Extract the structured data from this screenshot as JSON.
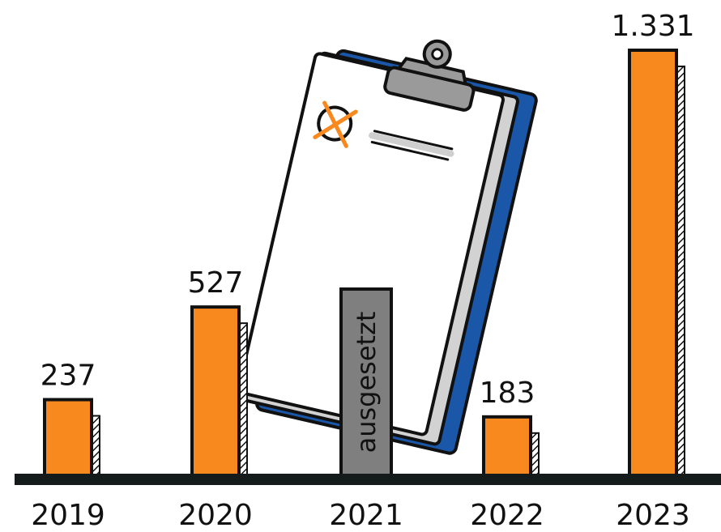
{
  "chart_data": {
    "type": "bar",
    "title": "",
    "xlabel": "",
    "ylabel": "",
    "categories": [
      "2019",
      "2020",
      "2021",
      "2022",
      "2023"
    ],
    "values": [
      237,
      527,
      null,
      183,
      1331
    ],
    "value_labels": [
      "237",
      "527",
      "ausgesetzt",
      "183",
      "1.331"
    ],
    "suspended_category": "2021",
    "suspended_label": "ausgesetzt",
    "ylim": [
      0,
      1331
    ],
    "grid": false,
    "legend": "none"
  },
  "colors": {
    "bar": "#f7891f",
    "suspended_bar": "#7f7f7f",
    "outline": "#111111",
    "axis": "#151b1b",
    "clipboard_back": "#1a57a8",
    "clipboard_paper": "#ffffff",
    "clip": "#9a9a9a",
    "mark": "#f7891f"
  },
  "illustration": {
    "clipboard_icon": "clipboard-ballot-icon"
  }
}
